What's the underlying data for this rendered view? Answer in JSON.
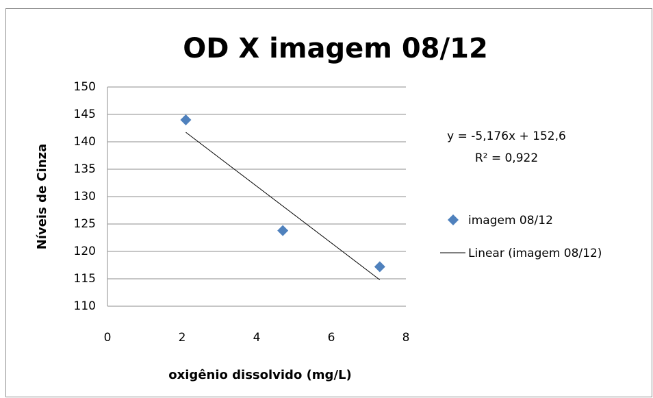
{
  "chart_data": {
    "type": "scatter",
    "title": "OD X imagem 08/12",
    "xlabel": "oxigênio dissolvido  (mg/L)",
    "ylabel": "Níveis de Cinza",
    "series": [
      {
        "name": "imagem 08/12",
        "color": "#4f81bd",
        "x": [
          2.1,
          4.7,
          7.3
        ],
        "values": [
          144,
          123.8,
          117.2
        ]
      }
    ],
    "trendline": {
      "name": "Linear (imagem 08/12)",
      "color": "#000000",
      "slope": -5.176,
      "intercept": 152.6,
      "label": "y = -5,176x + 152,6",
      "r2": 0.922,
      "r2_label": "R² = 0,922"
    },
    "xlim": [
      0,
      8
    ],
    "xticks": [
      0,
      2,
      4,
      6,
      8
    ],
    "ylim": [
      110,
      150
    ],
    "yticks": [
      110,
      115,
      120,
      125,
      130,
      135,
      140,
      145,
      150
    ],
    "grid": true,
    "legend": "right"
  }
}
